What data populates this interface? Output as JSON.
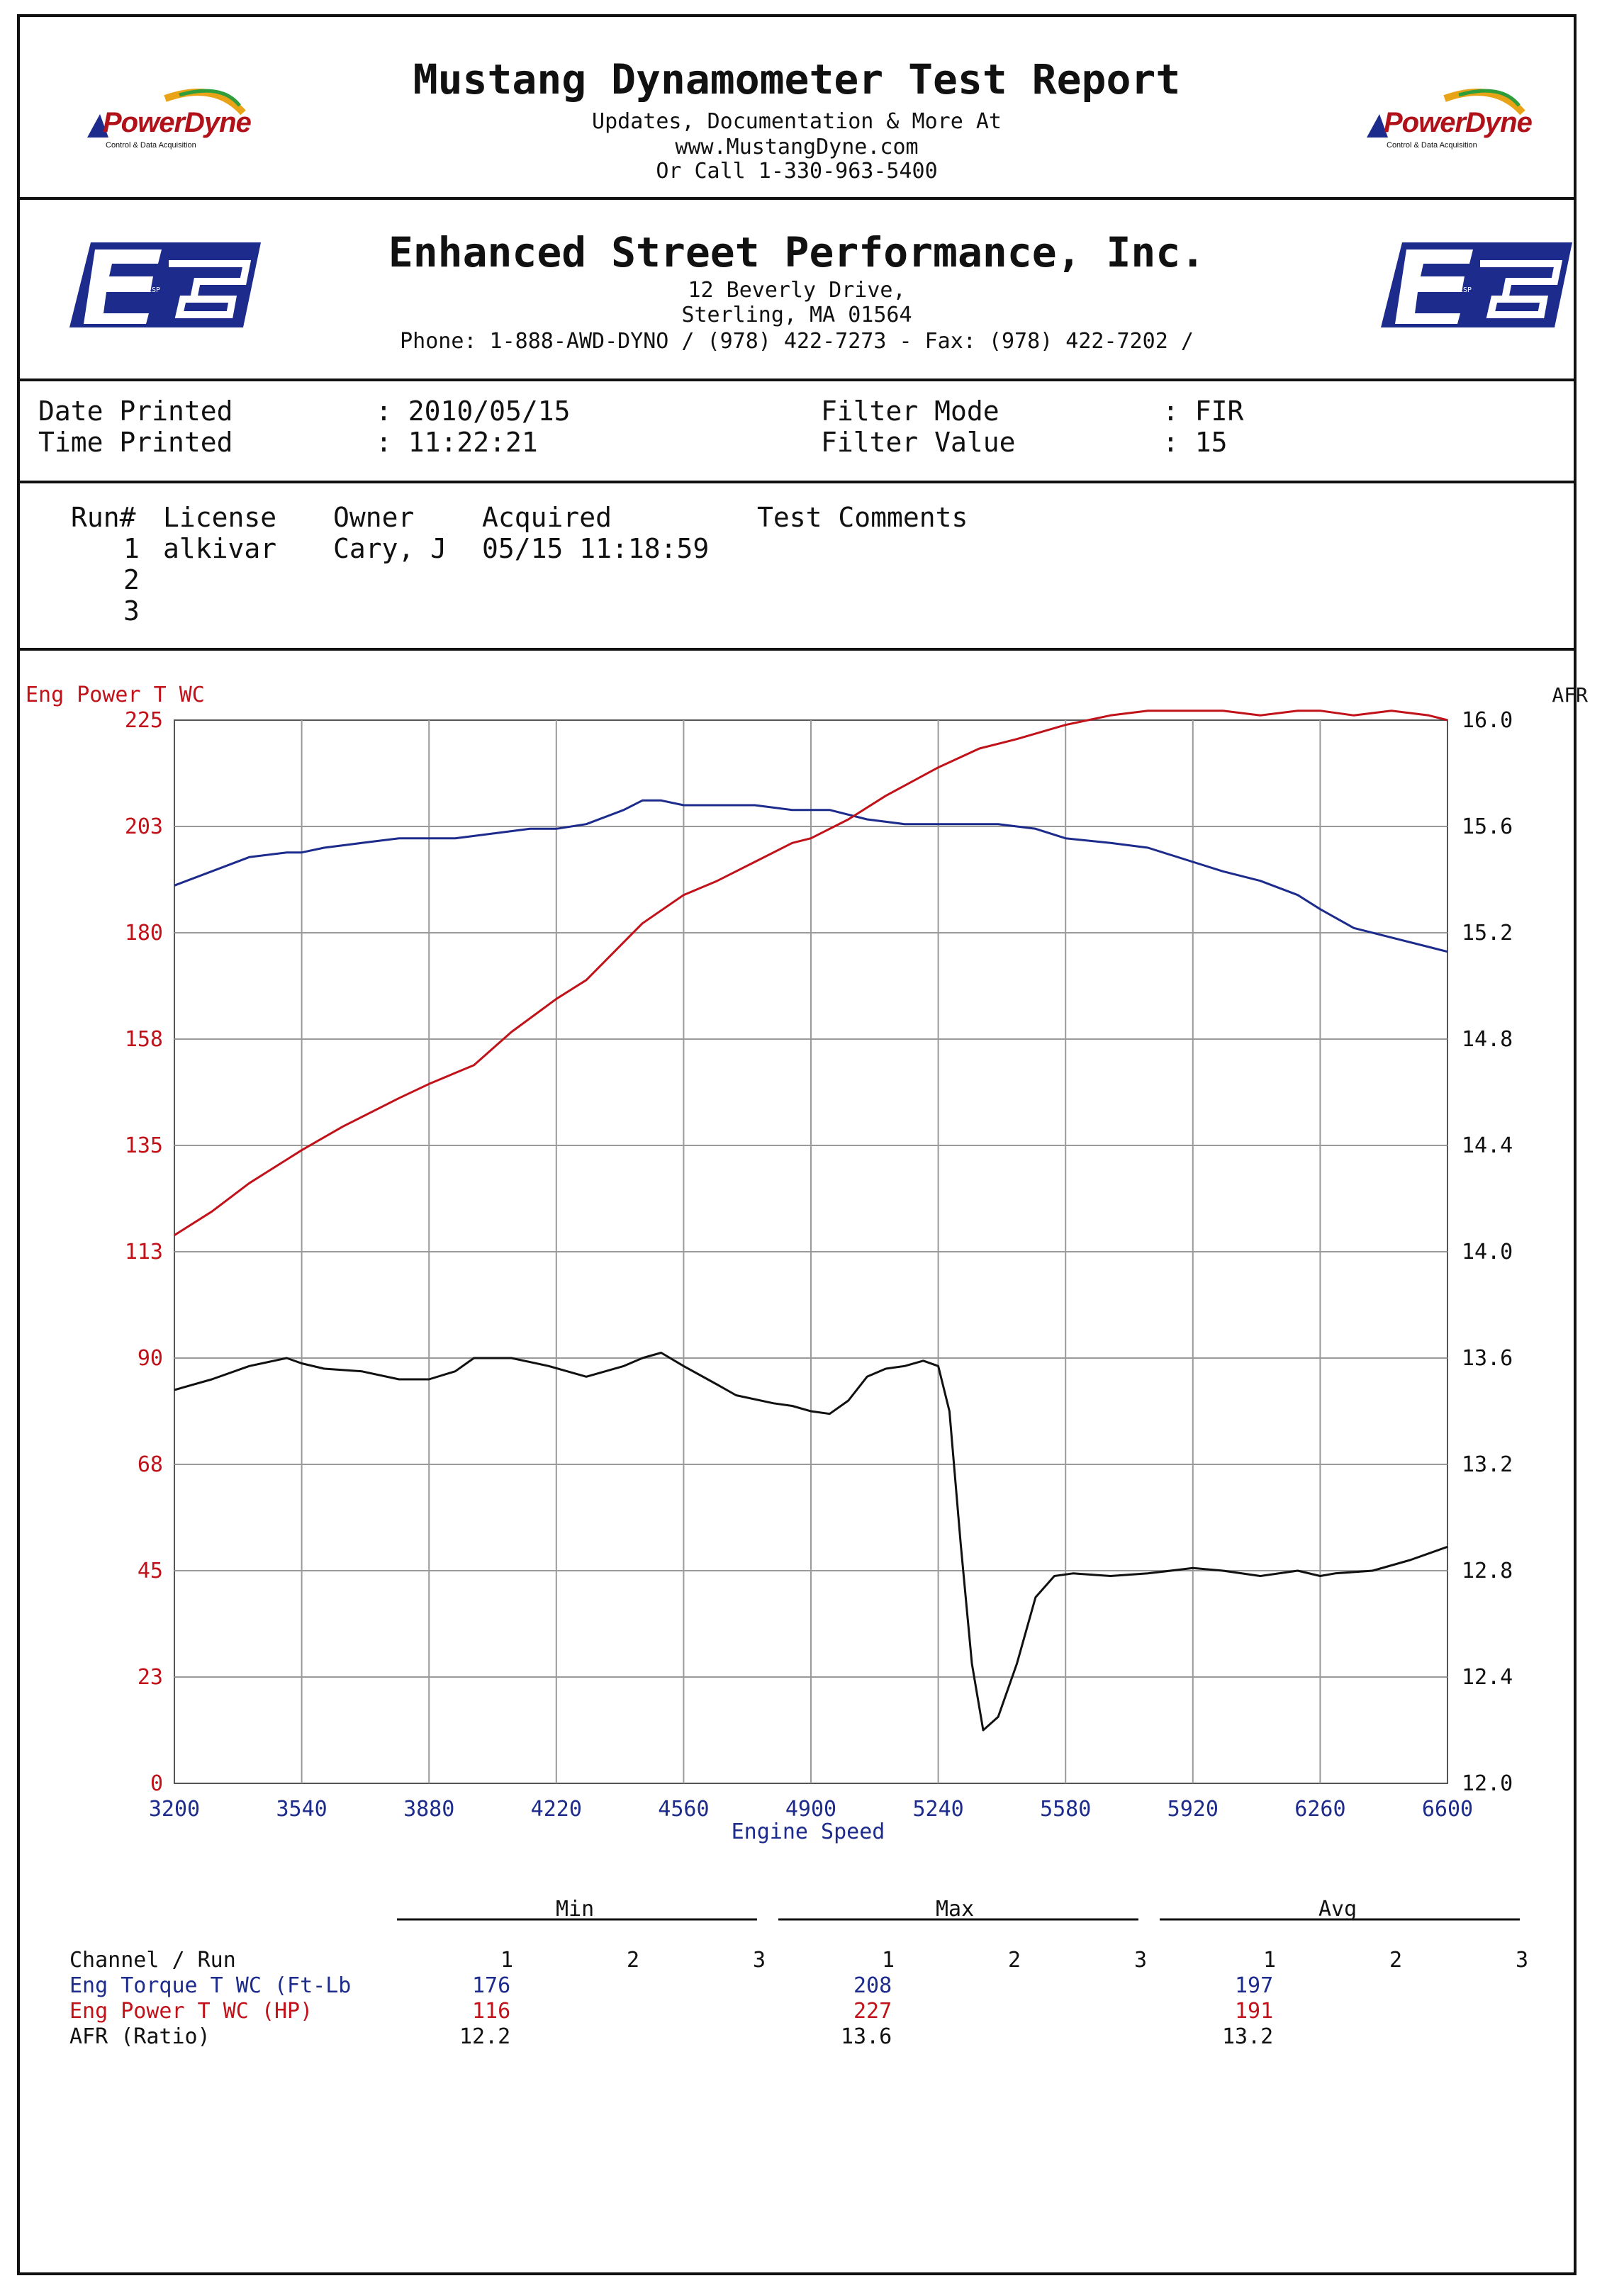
{
  "header": {
    "title": "Mustang Dynamometer Test Report",
    "line1": "Updates, Documentation & More At",
    "line2": "www.MustangDyne.com",
    "line3": "Or Call 1-330-963-5400",
    "logo_text": "PowerDyne",
    "logo_sub": "Control & Data Acquisition"
  },
  "shop": {
    "name": "Enhanced Street Performance, Inc.",
    "address1": "12 Beverly Drive,",
    "address2": "Sterling, MA  01564",
    "phone": "Phone: 1-888-AWD-DYNO / (978) 422-7273 - Fax: (978) 422-7202 /",
    "logo_text": "ESP"
  },
  "info": {
    "date_label": "Date Printed",
    "date_value": ": 2010/05/15",
    "time_label": "Time Printed",
    "time_value": ": 11:22:21",
    "filter_mode_label": "Filter Mode",
    "filter_mode_value": ": FIR",
    "filter_value_label": "Filter Value",
    "filter_value_value": ": 15"
  },
  "runs": {
    "headers": [
      "Run#",
      "License",
      "Owner",
      "Acquired",
      "Test Comments"
    ],
    "rows": [
      {
        "run": "1",
        "license": "alkivar",
        "owner": "Cary, J",
        "acquired": "05/15 11:18:59",
        "comments": ""
      },
      {
        "run": "2",
        "license": "",
        "owner": "",
        "acquired": "",
        "comments": ""
      },
      {
        "run": "3",
        "license": "",
        "owner": "",
        "acquired": "",
        "comments": ""
      }
    ]
  },
  "chart_data": {
    "type": "line",
    "title": "",
    "left_axis_label": "Eng Power T WC",
    "right_axis_label": "AFR",
    "xlabel": "Engine Speed",
    "xlim": [
      3200,
      6600
    ],
    "ylim_left": [
      0,
      225
    ],
    "ylim_right": [
      12.0,
      16.0
    ],
    "x_ticks": [
      "3200",
      "3540",
      "3880",
      "4220",
      "4560",
      "4900",
      "5240",
      "5580",
      "5920",
      "6260",
      "6600"
    ],
    "y_ticks_left": [
      "0",
      "23",
      "45",
      "68",
      "90",
      "113",
      "135",
      "158",
      "180",
      "203",
      "225"
    ],
    "y_ticks_right": [
      "12.0",
      "12.4",
      "12.8",
      "13.2",
      "13.6",
      "14.0",
      "14.4",
      "14.8",
      "15.2",
      "15.6",
      "16.0"
    ],
    "grid": true,
    "colors": {
      "torque": "#1c2b8c",
      "power": "#c1121a",
      "afr": "#111111"
    },
    "series": [
      {
        "axis": "left",
        "color": "#1c2b8c",
        "x": [
          3200,
          3300,
          3400,
          3500,
          3540,
          3600,
          3700,
          3800,
          3880,
          3950,
          4050,
          4150,
          4220,
          4300,
          4400,
          4450,
          4500,
          4560,
          4650,
          4750,
          4850,
          4900,
          4950,
          5050,
          5150,
          5240,
          5300,
          5400,
          5500,
          5580,
          5700,
          5800,
          5920,
          6000,
          6100,
          6200,
          6260,
          6350,
          6450,
          6550,
          6600
        ],
        "values": [
          190,
          193,
          196,
          197,
          197,
          198,
          199,
          200,
          200,
          200,
          201,
          202,
          202,
          203,
          206,
          208,
          208,
          207,
          207,
          207,
          206,
          206,
          206,
          204,
          203,
          203,
          203,
          203,
          202,
          200,
          199,
          198,
          195,
          193,
          191,
          188,
          185,
          181,
          179,
          177,
          176
        ]
      },
      {
        "axis": "left",
        "color": "#c1121a",
        "x": [
          3200,
          3300,
          3400,
          3500,
          3540,
          3650,
          3800,
          3880,
          4000,
          4100,
          4220,
          4300,
          4400,
          4450,
          4560,
          4650,
          4750,
          4850,
          4900,
          5000,
          5100,
          5240,
          5350,
          5450,
          5580,
          5700,
          5800,
          5920,
          6000,
          6100,
          6200,
          6260,
          6350,
          6450,
          6550,
          6600
        ],
        "values": [
          116,
          121,
          127,
          132,
          134,
          139,
          145,
          148,
          152,
          159,
          166,
          170,
          178,
          182,
          188,
          191,
          195,
          199,
          200,
          204,
          209,
          215,
          219,
          221,
          224,
          226,
          227,
          227,
          227,
          226,
          227,
          227,
          226,
          227,
          226,
          225
        ]
      },
      {
        "axis": "right",
        "color": "#111111",
        "x": [
          3200,
          3300,
          3400,
          3500,
          3540,
          3600,
          3700,
          3800,
          3880,
          3950,
          4000,
          4100,
          4200,
          4300,
          4400,
          4450,
          4500,
          4560,
          4650,
          4700,
          4800,
          4850,
          4900,
          4950,
          5000,
          5050,
          5100,
          5150,
          5200,
          5240,
          5270,
          5300,
          5330,
          5360,
          5400,
          5450,
          5500,
          5550,
          5600,
          5700,
          5800,
          5920,
          6000,
          6100,
          6200,
          6260,
          6300,
          6400,
          6500,
          6600
        ],
        "values": [
          13.48,
          13.52,
          13.57,
          13.6,
          13.58,
          13.56,
          13.55,
          13.52,
          13.52,
          13.55,
          13.6,
          13.6,
          13.57,
          13.53,
          13.57,
          13.6,
          13.62,
          13.57,
          13.5,
          13.46,
          13.43,
          13.42,
          13.4,
          13.39,
          13.44,
          13.53,
          13.56,
          13.57,
          13.59,
          13.57,
          13.4,
          12.9,
          12.45,
          12.2,
          12.25,
          12.45,
          12.7,
          12.78,
          12.79,
          12.78,
          12.79,
          12.81,
          12.8,
          12.78,
          12.8,
          12.78,
          12.79,
          12.8,
          12.84,
          12.89
        ]
      }
    ]
  },
  "stats": {
    "groups": [
      "Min",
      "Max",
      "Avg"
    ],
    "channel_run_label": "Channel / Run",
    "run_numbers": [
      "1",
      "2",
      "3"
    ],
    "rows": [
      {
        "label": "Eng Torque T WC (Ft-Lb",
        "min": "176",
        "max": "208",
        "avg": "197",
        "color": "#1c2b8c"
      },
      {
        "label": "Eng Power T WC (HP)",
        "min": "116",
        "max": "227",
        "avg": "191",
        "color": "#c1121a"
      },
      {
        "label": "AFR (Ratio)",
        "min": "12.2",
        "max": "13.6",
        "avg": "13.2",
        "color": "#111111"
      }
    ]
  }
}
